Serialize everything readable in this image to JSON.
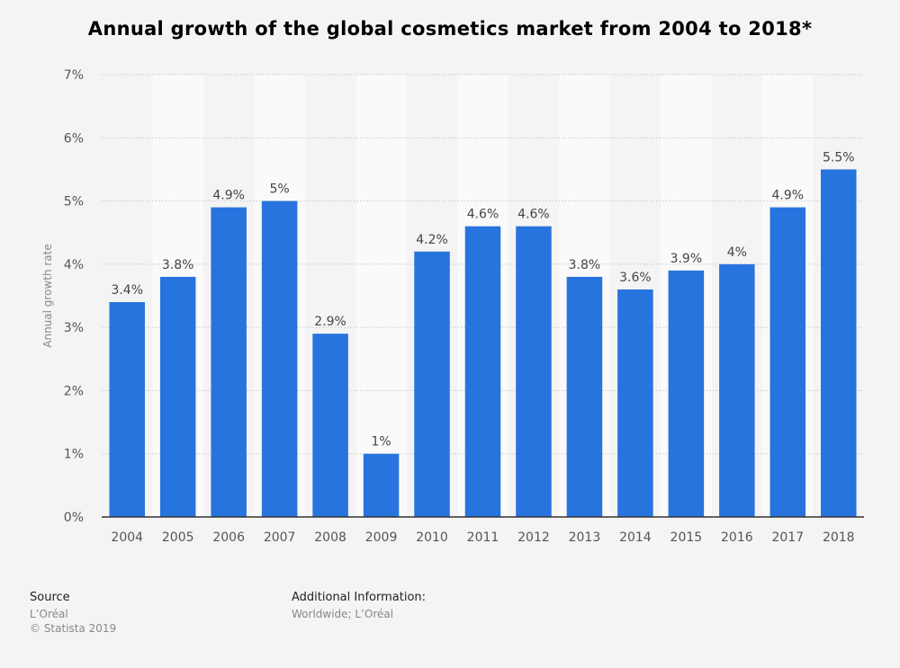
{
  "chart_data": {
    "type": "bar",
    "title": "Annual growth of the global cosmetics market from 2004 to 2018*",
    "ylabel": "Annual growth rate",
    "xlabel": "",
    "ylim": [
      0,
      7
    ],
    "yticks": [
      "0%",
      "1%",
      "2%",
      "3%",
      "4%",
      "5%",
      "6%",
      "7%"
    ],
    "categories": [
      "2004",
      "2005",
      "2006",
      "2007",
      "2008",
      "2009",
      "2010",
      "2011",
      "2012",
      "2013",
      "2014",
      "2015",
      "2016",
      "2017",
      "2018"
    ],
    "values": [
      3.4,
      3.8,
      4.9,
      5.0,
      2.9,
      1.0,
      4.2,
      4.6,
      4.6,
      3.8,
      3.6,
      3.9,
      4.0,
      4.9,
      5.5
    ],
    "labels": [
      "3.4%",
      "3.8%",
      "4.9%",
      "5%",
      "2.9%",
      "1%",
      "4.2%",
      "4.6%",
      "4.6%",
      "3.8%",
      "3.6%",
      "3.9%",
      "4%",
      "4.9%",
      "5.5%"
    ],
    "grid": true,
    "bar_color": "#2874de"
  },
  "footer": {
    "source_heading": "Source",
    "source_lines": [
      "L’Oréal",
      "© Statista 2019"
    ],
    "info_heading": "Additional Information:",
    "info_line": "Worldwide; L’Oréal"
  }
}
